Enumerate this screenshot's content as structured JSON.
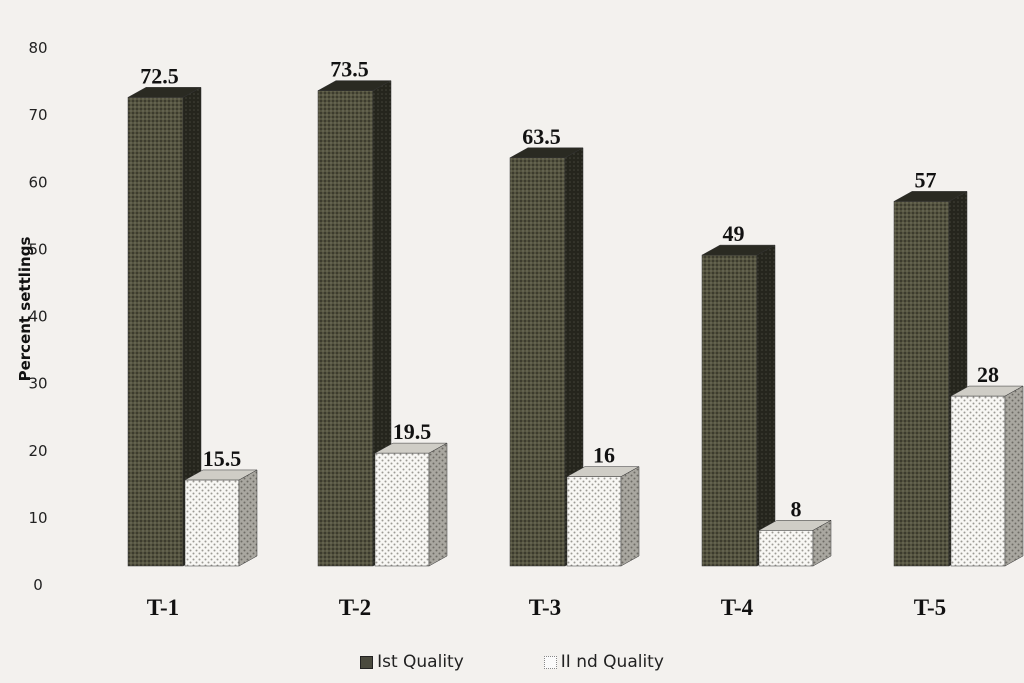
{
  "colors": {
    "first_quality": "#4f4e42",
    "first_quality_side": "#1e1e18",
    "second_quality": "#f7f6f3",
    "second_quality_side": "#8c8a84",
    "background": "#f3f1ee"
  },
  "chart_data": {
    "type": "bar",
    "ylabel": "Percent settlings",
    "ylim": [
      0,
      80
    ],
    "yticks": [
      0,
      10,
      20,
      30,
      40,
      50,
      60,
      70,
      80
    ],
    "categories": [
      "T-1",
      "T-2",
      "T-3",
      "T-4",
      "T-5"
    ],
    "series": [
      {
        "name": "Ist Quality",
        "values": [
          72.5,
          73.5,
          63.5,
          49,
          57
        ]
      },
      {
        "name": "II nd Quality",
        "values": [
          15.5,
          19.5,
          16,
          8,
          28
        ]
      }
    ],
    "grid": false,
    "legend": "bottom"
  }
}
